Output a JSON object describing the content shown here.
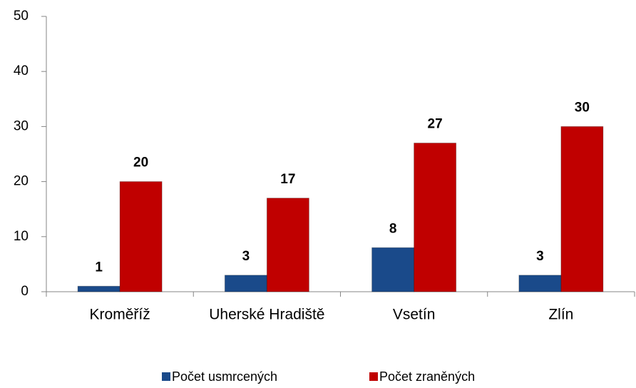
{
  "chart_data": {
    "type": "bar",
    "categories": [
      "Kroměříž",
      "Uherské Hradiště",
      "Vsetín",
      "Zlín"
    ],
    "series": [
      {
        "name": "Počet usmrcených",
        "color": "#1a4a8a",
        "values": [
          1,
          3,
          8,
          3
        ]
      },
      {
        "name": "Počet zraněných",
        "color": "#c00000",
        "values": [
          20,
          17,
          27,
          30
        ]
      }
    ],
    "ylim": [
      0,
      50
    ],
    "yticks": [
      0,
      10,
      20,
      30,
      40,
      50
    ],
    "grid": false,
    "legend": "bottom"
  }
}
